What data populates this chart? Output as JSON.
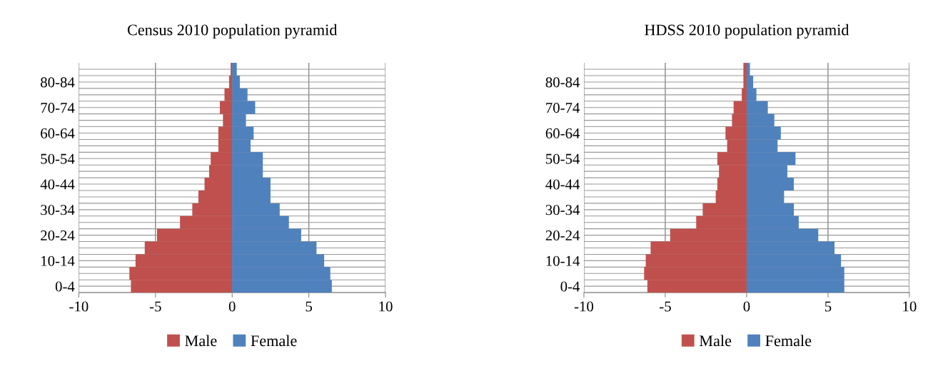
{
  "chart_data": [
    {
      "type": "bar",
      "orientation": "horizontal",
      "title": "Census 2010 population pyramid",
      "categories": [
        null,
        "80-84",
        null,
        "70-74",
        null,
        "60-64",
        null,
        "50-54",
        null,
        "40-44",
        null,
        "30-34",
        null,
        "20-24",
        null,
        "10-14",
        null,
        "0-4"
      ],
      "series": [
        {
          "name": "Male",
          "color": "#c0504d",
          "values": [
            -0.1,
            -0.2,
            -0.5,
            -0.8,
            -0.6,
            -0.9,
            -0.9,
            -1.4,
            -1.5,
            -1.8,
            -2.2,
            -2.6,
            -3.4,
            -4.9,
            -5.7,
            -6.3,
            -6.7,
            -6.6
          ]
        },
        {
          "name": "Female",
          "color": "#4f81bd",
          "values": [
            0.3,
            0.5,
            1.0,
            1.5,
            0.9,
            1.4,
            1.2,
            2.0,
            2.0,
            2.5,
            2.5,
            3.1,
            3.7,
            4.5,
            5.5,
            6.0,
            6.4,
            6.5
          ]
        }
      ],
      "stacked": true,
      "xlim": [
        -10,
        10
      ],
      "xticks": [
        -10,
        -5,
        0,
        5,
        10
      ],
      "grid": true,
      "legend": "bottom"
    },
    {
      "type": "bar",
      "orientation": "horizontal",
      "title": "HDSS 2010 population pyramid",
      "categories": [
        null,
        "80-84",
        null,
        "70-74",
        null,
        "60-64",
        null,
        "50-54",
        null,
        "40-44",
        null,
        "30-34",
        null,
        "20-24",
        null,
        "10-14",
        null,
        "0-4"
      ],
      "series": [
        {
          "name": "Male",
          "color": "#c0504d",
          "values": [
            -0.2,
            -0.2,
            -0.3,
            -0.8,
            -0.9,
            -1.3,
            -1.2,
            -1.8,
            -1.7,
            -1.8,
            -1.9,
            -2.7,
            -3.1,
            -4.7,
            -5.9,
            -6.2,
            -6.3,
            -6.1
          ]
        },
        {
          "name": "Female",
          "color": "#4f81bd",
          "values": [
            0.2,
            0.4,
            0.6,
            1.3,
            1.7,
            2.1,
            1.9,
            3.0,
            2.5,
            2.9,
            2.3,
            2.9,
            3.2,
            4.4,
            5.4,
            5.8,
            6.0,
            6.0
          ]
        }
      ],
      "stacked": true,
      "xlim": [
        -10,
        10
      ],
      "xticks": [
        -10,
        -5,
        0,
        5,
        10
      ],
      "grid": true,
      "legend": "bottom"
    }
  ]
}
